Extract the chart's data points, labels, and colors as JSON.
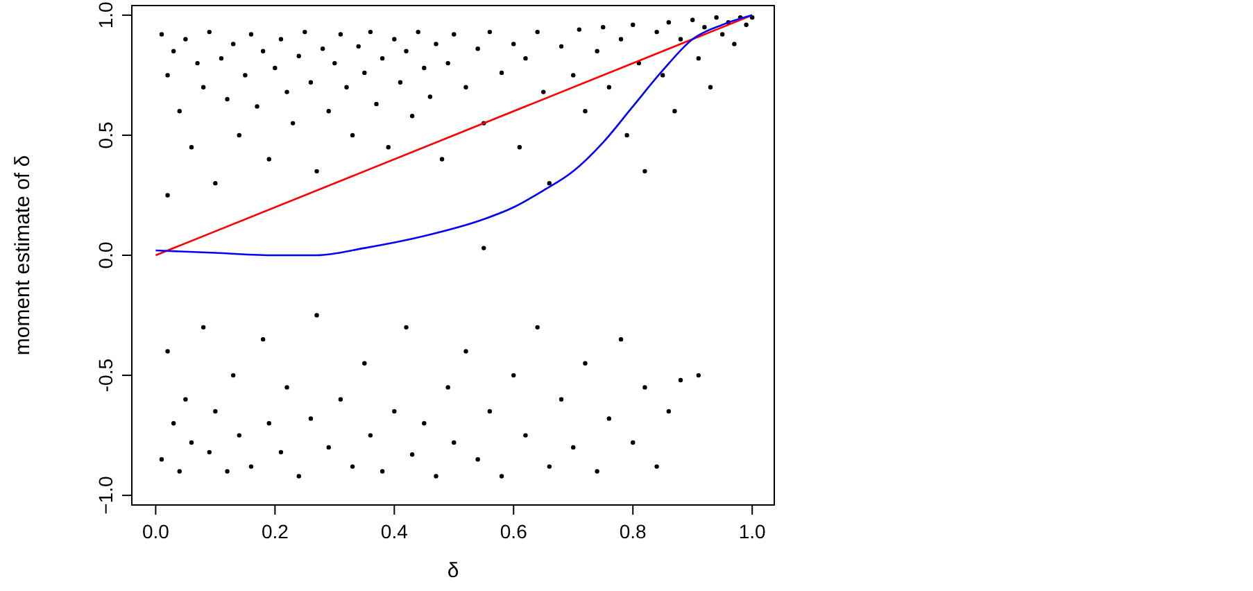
{
  "chart_data": {
    "type": "scatter",
    "xlabel": "δ",
    "ylabel": "moment estimate of δ",
    "xlim": [
      -0.04,
      1.037
    ],
    "ylim": [
      -1.04,
      1.04
    ],
    "xticks": [
      {
        "value": 0,
        "label": "0.0"
      },
      0.2,
      0.4,
      0.6,
      0.8,
      {
        "value": 1,
        "label": "1.0"
      }
    ],
    "yticks": [
      {
        "value": -1,
        "label": "−1.0"
      },
      -0.5,
      {
        "value": 0,
        "label": "0.0"
      },
      0.5,
      {
        "value": 1,
        "label": "1.0"
      }
    ],
    "grid": false,
    "series": [
      {
        "color": "#000000",
        "marker": "circle",
        "x": [
          0.01,
          0.02,
          0.03,
          0.04,
          0.05,
          0.06,
          0.07,
          0.08,
          0.09,
          0.1,
          0.11,
          0.12,
          0.13,
          0.14,
          0.15,
          0.16,
          0.17,
          0.18,
          0.19,
          0.2,
          0.21,
          0.22,
          0.23,
          0.24,
          0.25,
          0.26,
          0.27,
          0.28,
          0.29,
          0.3,
          0.31,
          0.32,
          0.33,
          0.34,
          0.35,
          0.36,
          0.37,
          0.38,
          0.39,
          0.4,
          0.41,
          0.42,
          0.43,
          0.44,
          0.45,
          0.46,
          0.47,
          0.48,
          0.49,
          0.5,
          0.52,
          0.54,
          0.55,
          0.56,
          0.58,
          0.6,
          0.61,
          0.62,
          0.64,
          0.65,
          0.66,
          0.68,
          0.7,
          0.71,
          0.72,
          0.74,
          0.75,
          0.76,
          0.78,
          0.79,
          0.8,
          0.81,
          0.82,
          0.84,
          0.85,
          0.86,
          0.87,
          0.88,
          0.9,
          0.91,
          0.92,
          0.93,
          0.94,
          0.95,
          0.96,
          0.97,
          0.98,
          0.99,
          1.0,
          0.02,
          0.55,
          0.01,
          0.02,
          0.03,
          0.04,
          0.05,
          0.06,
          0.08,
          0.09,
          0.1,
          0.12,
          0.13,
          0.14,
          0.16,
          0.18,
          0.19,
          0.21,
          0.22,
          0.24,
          0.26,
          0.27,
          0.29,
          0.31,
          0.33,
          0.35,
          0.36,
          0.38,
          0.4,
          0.42,
          0.43,
          0.45,
          0.47,
          0.49,
          0.5,
          0.52,
          0.54,
          0.56,
          0.58,
          0.6,
          0.62,
          0.64,
          0.66,
          0.68,
          0.7,
          0.72,
          0.74,
          0.76,
          0.78,
          0.8,
          0.82,
          0.84,
          0.86,
          0.88,
          0.91
        ],
        "values": [
          0.92,
          0.75,
          0.85,
          0.6,
          0.9,
          0.45,
          0.8,
          0.7,
          0.93,
          0.3,
          0.82,
          0.65,
          0.88,
          0.5,
          0.75,
          0.92,
          0.62,
          0.85,
          0.4,
          0.78,
          0.9,
          0.68,
          0.55,
          0.83,
          0.93,
          0.72,
          0.35,
          0.86,
          0.6,
          0.8,
          0.92,
          0.7,
          0.5,
          0.87,
          0.76,
          0.93,
          0.63,
          0.82,
          0.45,
          0.9,
          0.72,
          0.85,
          0.58,
          0.93,
          0.78,
          0.66,
          0.88,
          0.4,
          0.8,
          0.92,
          0.7,
          0.86,
          0.55,
          0.93,
          0.76,
          0.88,
          0.45,
          0.82,
          0.93,
          0.68,
          0.3,
          0.87,
          0.75,
          0.94,
          0.6,
          0.85,
          0.95,
          0.7,
          0.9,
          0.5,
          0.96,
          0.8,
          0.35,
          0.93,
          0.75,
          0.97,
          0.6,
          0.9,
          0.98,
          0.82,
          0.95,
          0.7,
          0.99,
          0.92,
          0.97,
          0.88,
          0.99,
          0.96,
          0.99,
          0.25,
          0.03,
          -0.85,
          -0.4,
          -0.7,
          -0.9,
          -0.6,
          -0.78,
          -0.3,
          -0.82,
          -0.65,
          -0.9,
          -0.5,
          -0.75,
          -0.88,
          -0.35,
          -0.7,
          -0.82,
          -0.55,
          -0.92,
          -0.68,
          -0.25,
          -0.8,
          -0.6,
          -0.88,
          -0.45,
          -0.75,
          -0.9,
          -0.65,
          -0.3,
          -0.83,
          -0.7,
          -0.92,
          -0.55,
          -0.78,
          -0.4,
          -0.85,
          -0.65,
          -0.92,
          -0.5,
          -0.75,
          -0.3,
          -0.88,
          -0.6,
          -0.8,
          -0.45,
          -0.9,
          -0.68,
          -0.35,
          -0.78,
          -0.55,
          -0.88,
          -0.65,
          -0.52,
          -0.5
        ]
      },
      {
        "type": "line",
        "color": "#ff0000",
        "line_style": "solid",
        "x": [
          0,
          1
        ],
        "values": [
          0,
          1
        ]
      },
      {
        "type": "line",
        "color": "#0000ff",
        "line_style": "solid",
        "x": [
          0,
          0.1,
          0.2,
          0.27,
          0.35,
          0.45,
          0.55,
          0.6,
          0.65,
          0.7,
          0.75,
          0.8,
          0.85,
          0.9,
          0.95,
          1.0
        ],
        "values": [
          0.02,
          0.01,
          0.0,
          0.0,
          0.03,
          0.08,
          0.15,
          0.2,
          0.27,
          0.35,
          0.47,
          0.62,
          0.77,
          0.9,
          0.96,
          1.0
        ]
      }
    ]
  }
}
